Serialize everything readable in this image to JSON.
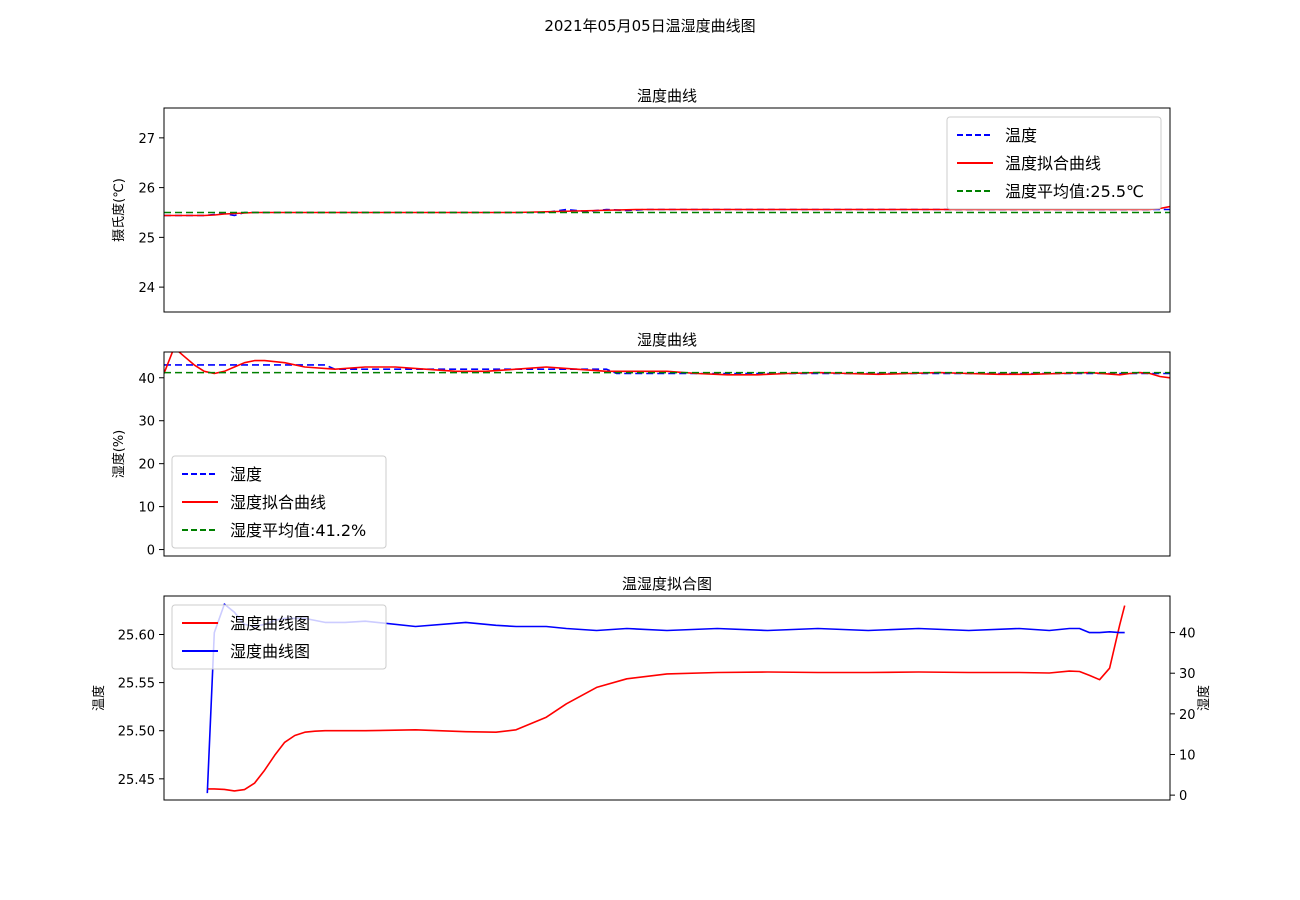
{
  "suptitle": "2021年05月05日温湿度曲线图",
  "chart_data": [
    {
      "type": "line",
      "title": "温度曲线",
      "ylabel": "摄氏度(℃)",
      "ylim": [
        23.5,
        27.6
      ],
      "yticks": [
        24,
        25,
        26,
        27
      ],
      "xlim": [
        0,
        100
      ],
      "legend_position": "upper-right",
      "series": [
        {
          "name": "温度",
          "style": "dashed",
          "color": "#0000ff",
          "x": [
            0,
            4,
            6,
            7,
            8,
            9,
            10,
            12,
            38,
            40,
            42,
            44,
            46,
            48,
            50,
            100
          ],
          "y": [
            25.44,
            25.44,
            25.48,
            25.44,
            25.5,
            25.5,
            25.5,
            25.5,
            25.5,
            25.56,
            25.52,
            25.56,
            25.54,
            25.56,
            25.56,
            25.56
          ]
        },
        {
          "name": "温度拟合曲线",
          "style": "solid",
          "color": "#ff0000",
          "x": [
            0,
            2,
            4,
            5,
            6,
            7,
            8,
            9,
            10,
            12,
            15,
            20,
            25,
            30,
            35,
            37,
            39,
            41,
            43,
            45,
            47,
            49,
            51,
            55,
            60,
            65,
            70,
            75,
            80,
            85,
            90,
            93,
            95,
            96,
            97,
            98,
            99,
            100
          ],
          "y": [
            25.44,
            25.44,
            25.44,
            25.45,
            25.47,
            25.48,
            25.49,
            25.5,
            25.5,
            25.5,
            25.5,
            25.5,
            25.5,
            25.5,
            25.5,
            25.51,
            25.52,
            25.53,
            25.54,
            25.55,
            25.56,
            25.56,
            25.56,
            25.56,
            25.56,
            25.56,
            25.56,
            25.56,
            25.56,
            25.56,
            25.56,
            25.56,
            25.56,
            25.56,
            25.56,
            25.56,
            25.58,
            25.62
          ]
        },
        {
          "name": "温度平均值:25.5℃",
          "style": "dashed",
          "color": "#008000",
          "type": "hline",
          "value": 25.5
        }
      ]
    },
    {
      "type": "line",
      "title": "湿度曲线",
      "ylabel": "湿度(%)",
      "ylim": [
        -1.5,
        46
      ],
      "yticks": [
        0,
        10,
        20,
        30,
        40
      ],
      "xlim": [
        0,
        100
      ],
      "legend_position": "lower-left",
      "series": [
        {
          "name": "湿度",
          "style": "dashed",
          "color": "#0000ff",
          "x": [
            0,
            16,
            17,
            44,
            45,
            100
          ],
          "y": [
            43,
            43,
            42,
            42,
            41,
            41
          ]
        },
        {
          "name": "湿度拟合曲线",
          "style": "solid",
          "color": "#ff0000",
          "x": [
            0,
            1,
            2,
            3,
            4,
            5,
            6,
            7,
            8,
            9,
            10,
            12,
            14,
            17,
            20,
            23,
            26,
            29,
            32,
            35,
            38,
            41,
            44,
            47,
            50,
            53,
            56,
            59,
            62,
            65,
            68,
            71,
            74,
            77,
            80,
            83,
            86,
            89,
            92,
            95,
            96,
            97,
            98,
            99,
            100
          ],
          "y": [
            41,
            47,
            45,
            43,
            41.5,
            41,
            41.5,
            42.5,
            43.5,
            44,
            44,
            43.5,
            42.5,
            42,
            42.5,
            42.5,
            42,
            41.5,
            41.5,
            42,
            42.5,
            42,
            41.5,
            41.5,
            41.5,
            41,
            40.7,
            40.7,
            41,
            41.2,
            41,
            40.8,
            41,
            41.2,
            41,
            40.8,
            40.8,
            41,
            41.2,
            40.7,
            41,
            41.2,
            41,
            40.3,
            40
          ]
        },
        {
          "name": "湿度平均值:41.2%",
          "style": "dashed",
          "color": "#008000",
          "type": "hline",
          "value": 41.2
        }
      ]
    },
    {
      "type": "line",
      "title": "温湿度拟合图",
      "ylabel_left": "温度",
      "ylabel_right": "湿度",
      "ylim_left": [
        25.428,
        25.64
      ],
      "yticks_left": [
        25.45,
        25.5,
        25.55,
        25.6
      ],
      "ylim_right": [
        -1.2,
        49
      ],
      "yticks_right": [
        0,
        10,
        20,
        30,
        40
      ],
      "xlim": [
        0,
        100
      ],
      "legend_position": "upper-left",
      "series": [
        {
          "name": "温度曲线图",
          "axis": "left",
          "color": "#ff0000",
          "x": [
            4.3,
            5,
            6,
            7,
            8,
            9,
            10,
            11,
            12,
            13,
            14,
            15,
            16,
            17,
            18,
            20,
            25,
            30,
            33,
            35,
            38,
            40,
            43,
            46,
            50,
            55,
            60,
            65,
            70,
            75,
            80,
            85,
            88,
            90,
            91,
            92,
            93,
            94,
            95,
            95.5
          ],
          "y": [
            25.4395,
            25.4395,
            25.439,
            25.4375,
            25.4388,
            25.4455,
            25.459,
            25.4745,
            25.488,
            25.495,
            25.4985,
            25.4995,
            25.5,
            25.5,
            25.5,
            25.5,
            25.501,
            25.499,
            25.4985,
            25.501,
            25.514,
            25.528,
            25.545,
            25.554,
            25.559,
            25.5605,
            25.561,
            25.5605,
            25.5605,
            25.561,
            25.5605,
            25.5605,
            25.56,
            25.562,
            25.5615,
            25.5575,
            25.553,
            25.565,
            25.61,
            25.63
          ]
        },
        {
          "name": "湿度曲线图",
          "axis": "right",
          "color": "#0000ff",
          "x": [
            4.3,
            5,
            6,
            7,
            8,
            9,
            10,
            11,
            12,
            13,
            14,
            15,
            16,
            17,
            18,
            20,
            25,
            30,
            33,
            35,
            38,
            40,
            43,
            46,
            50,
            55,
            60,
            65,
            70,
            75,
            80,
            85,
            88,
            90,
            91,
            92,
            93,
            94,
            95,
            95.5
          ],
          "y": [
            0.5,
            40,
            47,
            45,
            42,
            41.5,
            42,
            43,
            43.5,
            43.5,
            43.5,
            43,
            42.5,
            42.5,
            42.5,
            42.8,
            41.5,
            42.5,
            41.8,
            41.5,
            41.5,
            41,
            40.5,
            41,
            40.5,
            41,
            40.5,
            41,
            40.5,
            41,
            40.5,
            41,
            40.5,
            41,
            41,
            40,
            40,
            40.2,
            40,
            40
          ]
        }
      ]
    }
  ]
}
